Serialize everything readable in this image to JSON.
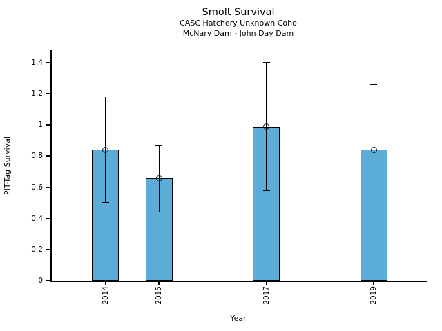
{
  "chart_data": {
    "type": "bar",
    "title": "Smolt Survival",
    "subtitle": [
      "CASC Hatchery Unknown Coho",
      "McNary Dam - John Day Dam"
    ],
    "xlabel": "Year",
    "ylabel": "PIT-Tag Survival",
    "categories": [
      "2014",
      "2015",
      "2017",
      "2019"
    ],
    "x_numeric": [
      2014,
      2015,
      2017,
      2019
    ],
    "values": [
      0.84,
      0.66,
      0.99,
      0.84
    ],
    "error_low": [
      0.5,
      0.44,
      0.58,
      0.41
    ],
    "error_high": [
      1.18,
      0.87,
      1.4,
      1.26
    ],
    "xlim": [
      2013,
      2020
    ],
    "ylim": [
      0,
      1.48
    ],
    "yticks": [
      "0",
      "0.2",
      "0.4",
      "0.6",
      "0.8",
      "1",
      "1.2",
      "1.4"
    ],
    "bar_width_x": 0.5,
    "bar_color": "#5BACD6",
    "bar_edge_color": "#000000",
    "error_color": "#000000",
    "marker": "open-circle",
    "grid": false,
    "legend": null,
    "background_color": "#FFFFFF",
    "text_color": "#000000"
  }
}
